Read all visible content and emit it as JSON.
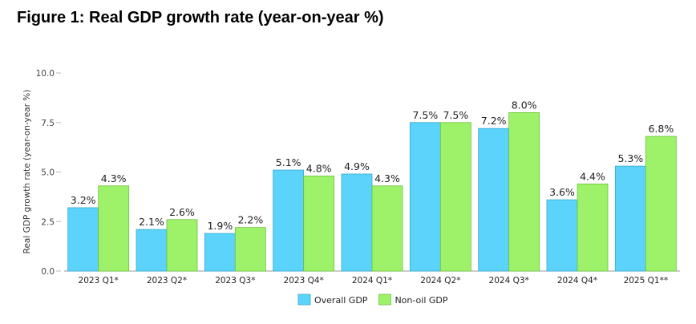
{
  "page_title": "Figure 1: Real GDP growth rate (year-on-year %)",
  "chart_data": {
    "type": "bar",
    "title": "Figure 1: Real GDP growth rate (year-on-year %)",
    "xlabel": "",
    "ylabel": "Real GDP growth rate (year-on-year %)",
    "ylim": [
      0,
      10
    ],
    "yticks": [
      "0.0",
      "2.5",
      "5.0",
      "7.5",
      "10.0"
    ],
    "ytick_values": [
      0,
      2.5,
      5,
      7.5,
      10
    ],
    "categories": [
      "2023 Q1*",
      "2023 Q2*",
      "2023 Q3*",
      "2023 Q4*",
      "2024 Q1*",
      "2024 Q2*",
      "2024 Q3*",
      "2024 Q4*",
      "2025 Q1**"
    ],
    "series": [
      {
        "name": "Overall GDP",
        "color": "#5bd3fa",
        "values": [
          3.2,
          2.1,
          1.9,
          5.1,
          4.9,
          7.5,
          7.2,
          3.6,
          5.3
        ],
        "labels": [
          "3.2%",
          "2.1%",
          "1.9%",
          "5.1%",
          "4.9%",
          "7.5%",
          "7.2%",
          "3.6%",
          "5.3%"
        ]
      },
      {
        "name": "Non-oil GDP",
        "color": "#9df26a",
        "values": [
          4.3,
          2.6,
          2.2,
          4.8,
          4.3,
          7.5,
          8.0,
          4.4,
          6.8
        ],
        "labels": [
          "4.3%",
          "2.6%",
          "2.2%",
          "4.8%",
          "4.3%",
          "7.5%",
          "8.0%",
          "4.4%",
          "6.8%"
        ]
      }
    ],
    "grid": false,
    "legend_position": "bottom"
  }
}
